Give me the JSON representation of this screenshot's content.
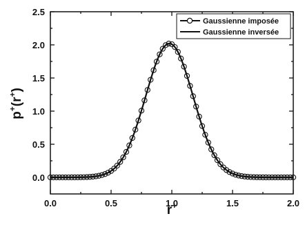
{
  "chart_data": {
    "type": "line",
    "xlabel_base": "r",
    "xlabel_sup": "+",
    "ylabel_base": "p",
    "ylabel_sup": "+",
    "ylabel_paren_open": "(r",
    "ylabel_paren_sup": "+",
    "ylabel_paren_close": ")",
    "xlim": [
      0.0,
      2.0
    ],
    "ylim": [
      -0.25,
      2.5
    ],
    "xticks": [
      "0.0",
      "0.5",
      "1.0",
      "1.5",
      "2.0"
    ],
    "yticks": [
      "0.0",
      "0.5",
      "1.0",
      "1.5",
      "2.0",
      "2.5"
    ],
    "grid": false,
    "legend_position": "top-right",
    "gaussian_params": {
      "amplitude": 2.02,
      "mean": 0.98,
      "sigma": 0.195
    },
    "series": [
      {
        "name": "Gaussienne imposée",
        "style": "line-with-open-circles",
        "color": "#111111",
        "x": [
          0.0,
          0.025,
          0.05,
          0.075,
          0.1,
          0.125,
          0.15,
          0.175,
          0.2,
          0.225,
          0.25,
          0.275,
          0.3,
          0.325,
          0.35,
          0.375,
          0.4,
          0.425,
          0.45,
          0.475,
          0.5,
          0.525,
          0.55,
          0.575,
          0.6,
          0.625,
          0.65,
          0.675,
          0.7,
          0.725,
          0.75,
          0.775,
          0.8,
          0.825,
          0.85,
          0.875,
          0.9,
          0.925,
          0.95,
          0.975,
          1.0,
          1.025,
          1.05,
          1.075,
          1.1,
          1.125,
          1.15,
          1.175,
          1.2,
          1.225,
          1.25,
          1.275,
          1.3,
          1.325,
          1.35,
          1.375,
          1.4,
          1.425,
          1.45,
          1.475,
          1.5,
          1.525,
          1.55,
          1.575,
          1.6,
          1.625,
          1.65,
          1.675,
          1.7,
          1.725,
          1.75,
          1.775,
          1.8,
          1.825,
          1.85,
          1.875,
          1.9,
          1.925,
          1.95,
          1.975,
          2.0
        ]
      },
      {
        "name": "Gaussienne inversée",
        "style": "line",
        "color": "#111111"
      }
    ]
  }
}
